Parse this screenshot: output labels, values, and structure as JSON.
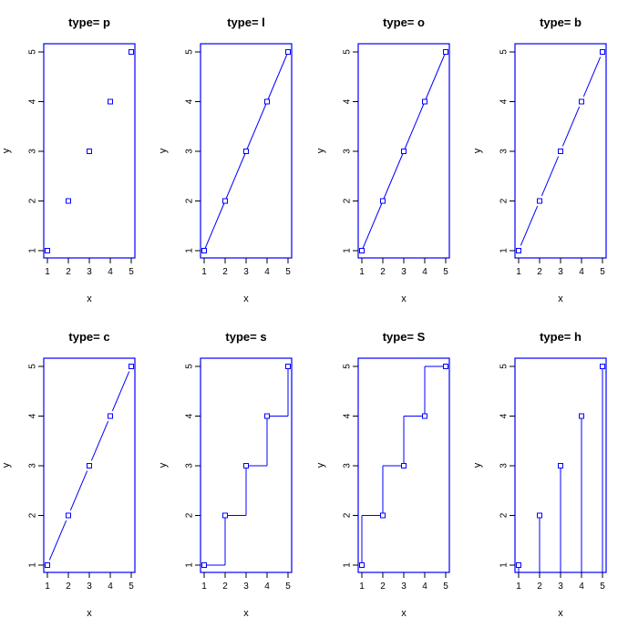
{
  "chart_data": [
    {
      "type": "scatter",
      "plot_type": "p",
      "title": "type= p",
      "xlabel": "x",
      "ylabel": "y",
      "x": [
        1,
        2,
        3,
        4,
        5
      ],
      "y": [
        1,
        2,
        3,
        4,
        5
      ],
      "xticks": [
        "1",
        "2",
        "3",
        "4",
        "5"
      ],
      "yticks": [
        "1",
        "2",
        "3",
        "4",
        "5"
      ],
      "xlim": [
        1,
        5
      ],
      "ylim": [
        1,
        5
      ],
      "color": "#0000ff",
      "grid": false
    },
    {
      "type": "line",
      "plot_type": "l",
      "title": "type= l",
      "xlabel": "x",
      "ylabel": "y",
      "x": [
        1,
        2,
        3,
        4,
        5
      ],
      "y": [
        1,
        2,
        3,
        4,
        5
      ],
      "xticks": [
        "1",
        "2",
        "3",
        "4",
        "5"
      ],
      "yticks": [
        "1",
        "2",
        "3",
        "4",
        "5"
      ],
      "xlim": [
        1,
        5
      ],
      "ylim": [
        1,
        5
      ],
      "color": "#0000ff",
      "grid": false
    },
    {
      "type": "line",
      "plot_type": "o",
      "title": "type= o",
      "xlabel": "x",
      "ylabel": "y",
      "x": [
        1,
        2,
        3,
        4,
        5
      ],
      "y": [
        1,
        2,
        3,
        4,
        5
      ],
      "xticks": [
        "1",
        "2",
        "3",
        "4",
        "5"
      ],
      "yticks": [
        "1",
        "2",
        "3",
        "4",
        "5"
      ],
      "xlim": [
        1,
        5
      ],
      "ylim": [
        1,
        5
      ],
      "color": "#0000ff",
      "grid": false
    },
    {
      "type": "line",
      "plot_type": "b",
      "title": "type= b",
      "xlabel": "x",
      "ylabel": "y",
      "x": [
        1,
        2,
        3,
        4,
        5
      ],
      "y": [
        1,
        2,
        3,
        4,
        5
      ],
      "xticks": [
        "1",
        "2",
        "3",
        "4",
        "5"
      ],
      "yticks": [
        "1",
        "2",
        "3",
        "4",
        "5"
      ],
      "xlim": [
        1,
        5
      ],
      "ylim": [
        1,
        5
      ],
      "color": "#0000ff",
      "grid": false
    },
    {
      "type": "line",
      "plot_type": "c",
      "title": "type= c",
      "xlabel": "x",
      "ylabel": "y",
      "x": [
        1,
        2,
        3,
        4,
        5
      ],
      "y": [
        1,
        2,
        3,
        4,
        5
      ],
      "xticks": [
        "1",
        "2",
        "3",
        "4",
        "5"
      ],
      "yticks": [
        "1",
        "2",
        "3",
        "4",
        "5"
      ],
      "xlim": [
        1,
        5
      ],
      "ylim": [
        1,
        5
      ],
      "color": "#0000ff",
      "grid": false
    },
    {
      "type": "line",
      "plot_type": "s",
      "title": "type= s",
      "xlabel": "x",
      "ylabel": "y",
      "x": [
        1,
        2,
        3,
        4,
        5
      ],
      "y": [
        1,
        2,
        3,
        4,
        5
      ],
      "xticks": [
        "1",
        "2",
        "3",
        "4",
        "5"
      ],
      "yticks": [
        "1",
        "2",
        "3",
        "4",
        "5"
      ],
      "xlim": [
        1,
        5
      ],
      "ylim": [
        1,
        5
      ],
      "color": "#0000ff",
      "grid": false
    },
    {
      "type": "line",
      "plot_type": "S",
      "title": "type= S",
      "xlabel": "x",
      "ylabel": "y",
      "x": [
        1,
        2,
        3,
        4,
        5
      ],
      "y": [
        1,
        2,
        3,
        4,
        5
      ],
      "xticks": [
        "1",
        "2",
        "3",
        "4",
        "5"
      ],
      "yticks": [
        "1",
        "2",
        "3",
        "4",
        "5"
      ],
      "xlim": [
        1,
        5
      ],
      "ylim": [
        1,
        5
      ],
      "color": "#0000ff",
      "grid": false
    },
    {
      "type": "bar",
      "plot_type": "h",
      "title": "type= h",
      "xlabel": "x",
      "ylabel": "y",
      "x": [
        1,
        2,
        3,
        4,
        5
      ],
      "y": [
        1,
        2,
        3,
        4,
        5
      ],
      "xticks": [
        "1",
        "2",
        "3",
        "4",
        "5"
      ],
      "yticks": [
        "1",
        "2",
        "3",
        "4",
        "5"
      ],
      "xlim": [
        1,
        5
      ],
      "ylim": [
        1,
        5
      ],
      "color": "#0000ff",
      "grid": false
    }
  ]
}
